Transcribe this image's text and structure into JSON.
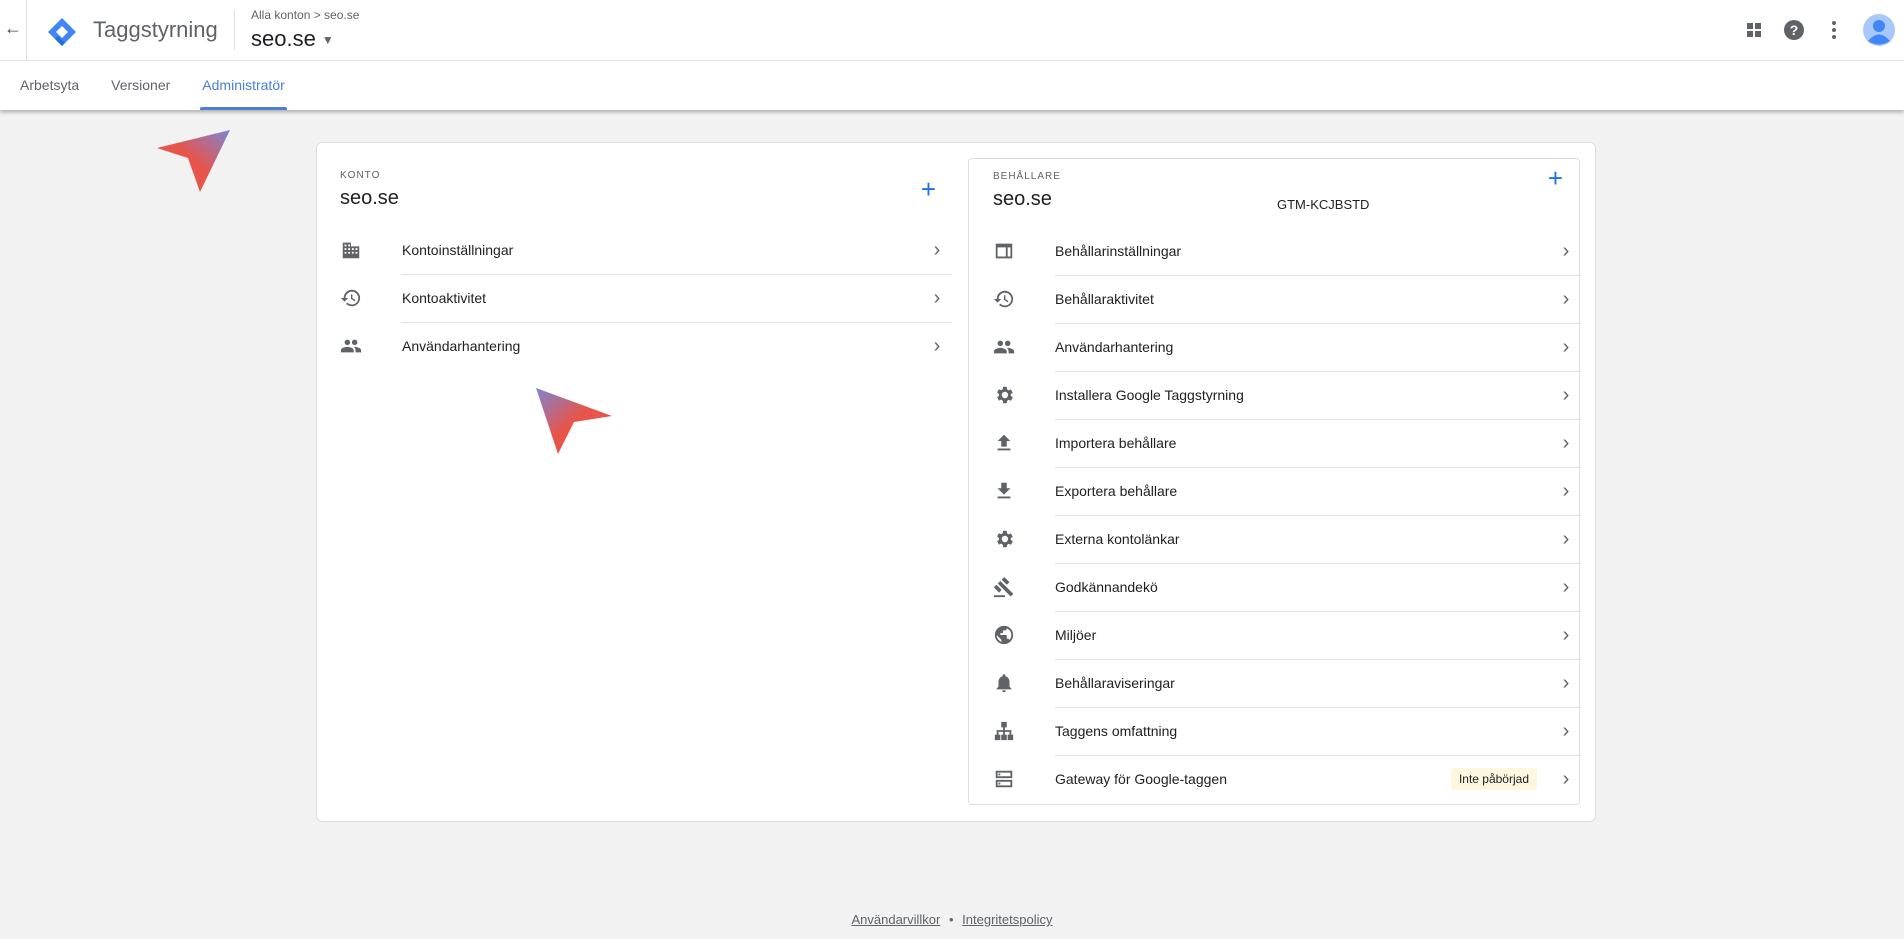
{
  "header": {
    "app_title": "Taggstyrning",
    "breadcrumb": "Alla konton > seo.se",
    "account": "seo.se"
  },
  "tabs": [
    {
      "label": "Arbetsyta"
    },
    {
      "label": "Versioner"
    },
    {
      "label": "Administratör",
      "active": true
    }
  ],
  "account_panel": {
    "section": "KONTO",
    "name": "seo.se",
    "items": [
      {
        "label": "Kontoinställningar",
        "icon": "building-icon"
      },
      {
        "label": "Kontoaktivitet",
        "icon": "history-icon"
      },
      {
        "label": "Användarhantering",
        "icon": "people-icon"
      }
    ]
  },
  "container_panel": {
    "section": "BEHÅLLARE",
    "name": "seo.se",
    "id": "GTM-KCJBSTD",
    "items": [
      {
        "label": "Behållarinställningar",
        "icon": "window-icon"
      },
      {
        "label": "Behållaraktivitet",
        "icon": "history-icon"
      },
      {
        "label": "Användarhantering",
        "icon": "people-icon"
      },
      {
        "label": "Installera Google Taggstyrning",
        "icon": "gear-icon"
      },
      {
        "label": "Importera behållare",
        "icon": "upload-icon"
      },
      {
        "label": "Exportera behållare",
        "icon": "download-icon"
      },
      {
        "label": "Externa kontolänkar",
        "icon": "gear-icon"
      },
      {
        "label": "Godkännandekö",
        "icon": "gavel-icon"
      },
      {
        "label": "Miljöer",
        "icon": "globe-icon"
      },
      {
        "label": "Behållaraviseringar",
        "icon": "bell-icon"
      },
      {
        "label": "Taggens omfattning",
        "icon": "hierarchy-icon"
      },
      {
        "label": "Gateway för Google-taggen",
        "icon": "server-icon",
        "badge": "Inte påbörjad"
      }
    ]
  },
  "footer": {
    "terms": "Användarvillkor",
    "separator": "•",
    "privacy": "Integritetspolicy"
  },
  "colors": {
    "accent": "#1a73e8",
    "active_tab": "#4a7fd1",
    "badge_bg": "#fef7e0"
  }
}
